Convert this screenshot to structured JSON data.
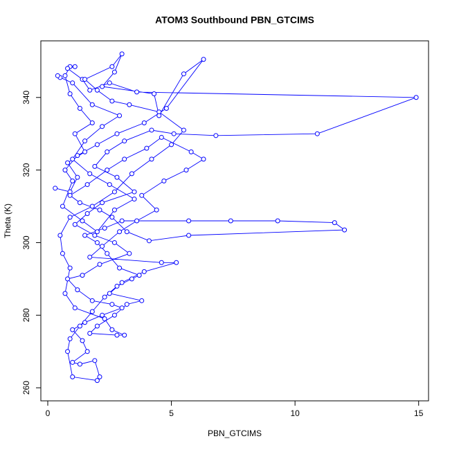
{
  "chart_data": {
    "type": "scatter",
    "title": "ATOM3 Southbound PBN_GTCIMS",
    "x_label": "PBN_GTCIMS",
    "y_label": "Theta (K)",
    "lines": true,
    "marker": "open-circle",
    "color": "#0000ff",
    "xlim": [
      -0.28,
      15.4
    ],
    "ylim": [
      256.4,
      355.6
    ],
    "xticks": [
      0,
      5,
      10,
      15
    ],
    "yticks": [
      260,
      280,
      300,
      320,
      340
    ],
    "x": [
      0.3,
      0.9,
      1.2,
      0.8,
      1.5,
      1.1,
      1.8,
      1.3,
      0.9,
      0.7,
      0.9,
      1.1,
      0.8,
      1.4,
      1.7,
      2.5,
      3.6,
      14.9,
      10.9,
      6.8,
      5.1,
      4.2,
      3.1,
      2.4,
      1.9,
      2.8,
      3.5,
      2.2,
      1.6,
      1.1,
      1.9,
      2.7,
      3.3,
      2.1,
      1.4,
      0.8,
      1.2,
      1.8,
      2.6,
      3.0,
      2.2,
      1.5,
      1.0,
      1.4,
      1.6,
      1.0,
      1.3,
      1.9,
      2.1,
      2.0,
      1.0,
      0.8,
      0.9,
      1.3,
      1.8,
      2.3,
      2.8,
      3.4,
      3.7,
      2.9,
      2.4,
      2.0,
      1.5,
      2.3,
      3.0,
      5.7,
      7.4,
      9.3,
      11.6,
      12.0,
      5.7,
      4.1,
      3.2,
      2.6,
      2.1,
      1.3,
      0.9,
      1.6,
      2.4,
      3.1,
      4.0,
      4.6,
      5.8,
      6.3,
      5.6,
      4.7,
      3.8,
      4.4,
      3.6,
      2.9,
      2.2,
      1.7,
      4.6,
      5.2,
      3.9,
      3.0,
      2.5,
      3.8,
      3.2,
      2.7,
      2.0,
      1.7,
      2.8,
      3.1,
      2.6,
      2.3,
      1.1,
      0.7,
      0.9,
      0.6,
      0.5,
      0.9,
      1.8,
      2.7,
      3.4,
      4.2,
      5.0,
      5.5,
      4.5,
      3.3,
      2.6,
      2.0,
      1.5,
      2.6,
      3.0,
      2.7,
      2.2,
      4.3,
      4.5,
      5.5,
      6.3,
      4.8,
      3.9,
      2.8,
      2.0,
      1.2,
      0.7,
      1.0,
      0.6,
      1.4,
      2.0,
      2.7,
      3.5,
      2.5,
      1.7,
      1.0,
      1.5,
      2.2,
      2.9,
      1.8,
      1.0,
      0.5,
      0.4
    ],
    "values": [
      315,
      314,
      318,
      322,
      325,
      330,
      333,
      337,
      341,
      346,
      348.5,
      348.5,
      348,
      345,
      342,
      344,
      341.5,
      340,
      330,
      329.5,
      330,
      331,
      328,
      325,
      321,
      318,
      314,
      311,
      308,
      305,
      302,
      300,
      297,
      294,
      291,
      290,
      287,
      284,
      283,
      282,
      280,
      278,
      276,
      273,
      270,
      267,
      266.5,
      267.5,
      263,
      262,
      263,
      270,
      273.5,
      277,
      281,
      285,
      288,
      290,
      291,
      293,
      297,
      300,
      302,
      304,
      306,
      306,
      306,
      306,
      305.5,
      303.5,
      302,
      300.5,
      303,
      307,
      309,
      311,
      313,
      316,
      320,
      323,
      326,
      329,
      325,
      323,
      320,
      317,
      313,
      309,
      306,
      303,
      299,
      296,
      294.5,
      294.5,
      292,
      289,
      286,
      284,
      283,
      280,
      277,
      275,
      274.5,
      274.5,
      276,
      279,
      282,
      286,
      293,
      297,
      302,
      307,
      310,
      314,
      319,
      323,
      327,
      331,
      336,
      338,
      339,
      342,
      345,
      348.5,
      352,
      347,
      343,
      341,
      335,
      346.5,
      350.5,
      337,
      333,
      330,
      327,
      324,
      320,
      317,
      310,
      306,
      303,
      309,
      312,
      316,
      319,
      323,
      328,
      332,
      335,
      338,
      344,
      345.5,
      346
    ]
  }
}
